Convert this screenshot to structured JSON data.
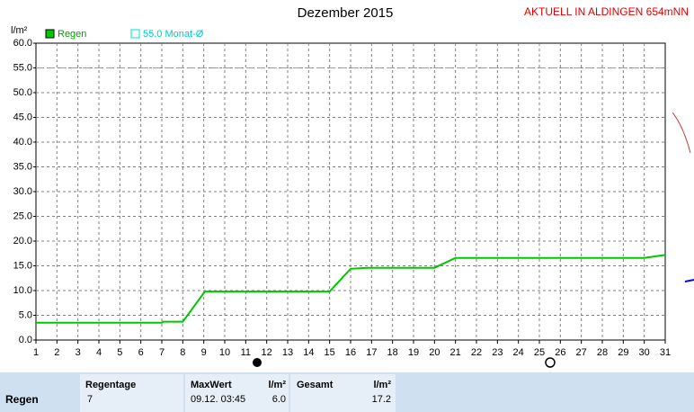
{
  "chart_data": {
    "type": "line",
    "title": "Dezember 2015",
    "subtitle": "AKTUELL IN ALDINGEN 654mNN",
    "y_label": "l/m²",
    "x": [
      1,
      7,
      7.05,
      8,
      9.05,
      15,
      16,
      16.8,
      20,
      21,
      30,
      31
    ],
    "series": [
      {
        "name": "Regen",
        "color": "#00c800",
        "values": [
          3.5,
          3.5,
          3.7,
          3.7,
          9.8,
          9.8,
          14.4,
          14.6,
          14.6,
          16.6,
          16.6,
          17.2
        ]
      }
    ],
    "reference_line": {
      "value": 55.0,
      "label": "55.0 Monat-Ø",
      "color": "#00dede"
    },
    "xlim": [
      1,
      31
    ],
    "xticks": [
      1,
      2,
      3,
      4,
      5,
      6,
      7,
      8,
      9,
      10,
      11,
      12,
      13,
      14,
      15,
      16,
      17,
      18,
      19,
      20,
      21,
      22,
      23,
      24,
      25,
      26,
      27,
      28,
      29,
      30,
      31
    ],
    "ylim": [
      0,
      60
    ],
    "yticks": [
      {
        "value": 0,
        "label": "0.0"
      },
      {
        "value": 5,
        "label": "5.0"
      },
      {
        "value": 10,
        "label": "10.0"
      },
      {
        "value": 15,
        "label": "15.0"
      },
      {
        "value": 20,
        "label": "20.0"
      },
      {
        "value": 25,
        "label": "25.0"
      },
      {
        "value": 30,
        "label": "30.0"
      },
      {
        "value": 35,
        "label": "35.0"
      },
      {
        "value": 40,
        "label": "40.0"
      },
      {
        "value": 45,
        "label": "45.0"
      },
      {
        "value": 50,
        "label": "50.0"
      },
      {
        "value": 55,
        "label": "55.0"
      },
      {
        "value": 60,
        "label": "60.0"
      }
    ],
    "grid": true
  },
  "table": {
    "row_label": "Regen",
    "columns": [
      {
        "header": "Regentage",
        "value": "7"
      },
      {
        "header": "MaxWert",
        "unit": "l/m²",
        "date": "09.12. 03:45",
        "value": "6.0"
      },
      {
        "header": "Gesamt",
        "unit": "l/m²",
        "value": "17.2"
      }
    ]
  }
}
